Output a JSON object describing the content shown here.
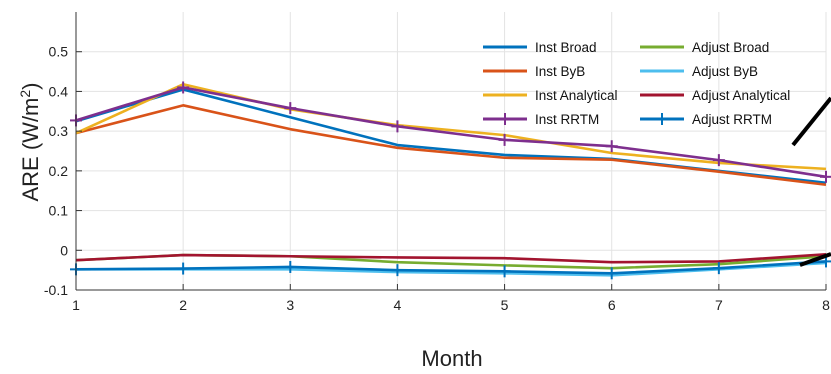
{
  "chart_data": {
    "type": "line",
    "xlabel": "Month",
    "ylabel_main": "ARE (W/m",
    "ylabel_sup": "2",
    "ylabel_close": ")",
    "x": [
      1,
      2,
      3,
      4,
      5,
      6,
      7,
      8
    ],
    "xlim": [
      1,
      8
    ],
    "ylim": [
      -0.1,
      0.6
    ],
    "x_ticks": [
      "1",
      "2",
      "3",
      "4",
      "5",
      "6",
      "7",
      "8"
    ],
    "y_ticks": [
      -0.1,
      0,
      0.1,
      0.2,
      0.3,
      0.4,
      0.5
    ],
    "y_tick_labels": [
      "-0.1",
      "0",
      "0.1",
      "0.2",
      "0.3",
      "0.4",
      "0.5"
    ],
    "grid": true,
    "legend_position": "top-right",
    "series": [
      {
        "name": "Inst Broad",
        "color": "#0072BD",
        "marker": "none",
        "values": [
          0.325,
          0.405,
          0.335,
          0.265,
          0.24,
          0.23,
          0.2,
          0.17
        ]
      },
      {
        "name": "Inst ByB",
        "color": "#D95319",
        "marker": "none",
        "values": [
          0.295,
          0.365,
          0.305,
          0.258,
          0.233,
          0.228,
          0.198,
          0.165
        ]
      },
      {
        "name": "Inst Analytical",
        "color": "#EDB120",
        "marker": "none",
        "values": [
          0.295,
          0.418,
          0.355,
          0.315,
          0.29,
          0.245,
          0.22,
          0.205
        ]
      },
      {
        "name": "Inst RRTM",
        "color": "#7E2F8E",
        "marker": "plus",
        "values": [
          0.327,
          0.41,
          0.358,
          0.312,
          0.278,
          0.262,
          0.227,
          0.185
        ]
      },
      {
        "name": "Adjust Broad",
        "color": "#77AC30",
        "marker": "none",
        "values": [
          -0.025,
          -0.012,
          -0.015,
          -0.03,
          -0.038,
          -0.045,
          -0.035,
          -0.015
        ]
      },
      {
        "name": "Adjust ByB",
        "color": "#4DBEEE",
        "marker": "none",
        "values": [
          -0.048,
          -0.048,
          -0.048,
          -0.055,
          -0.058,
          -0.063,
          -0.048,
          -0.032
        ]
      },
      {
        "name": "Adjust Analytical",
        "color": "#A2142F",
        "marker": "none",
        "values": [
          -0.025,
          -0.012,
          -0.015,
          -0.018,
          -0.02,
          -0.03,
          -0.028,
          -0.01
        ]
      },
      {
        "name": "Adjust RRTM",
        "color": "#0072BD",
        "marker": "plus",
        "values": [
          -0.048,
          -0.046,
          -0.042,
          -0.05,
          -0.053,
          -0.058,
          -0.045,
          -0.028
        ]
      }
    ]
  }
}
